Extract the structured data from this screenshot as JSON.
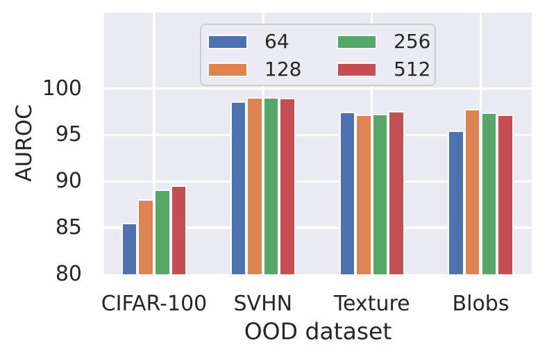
{
  "chart_data": {
    "type": "bar",
    "title": "",
    "xlabel": "OOD dataset",
    "ylabel": "AUROC",
    "categories": [
      "CIFAR-100",
      "SVHN",
      "Texture",
      "Blobs"
    ],
    "series": [
      {
        "name": "64",
        "color": "#4c72b0",
        "values": [
          85.5,
          98.6,
          97.5,
          95.5
        ]
      },
      {
        "name": "128",
        "color": "#dd8452",
        "values": [
          88.1,
          99.1,
          97.2,
          97.8
        ]
      },
      {
        "name": "256",
        "color": "#55a868",
        "values": [
          89.1,
          99.1,
          97.3,
          97.4
        ]
      },
      {
        "name": "512",
        "color": "#c44e52",
        "values": [
          89.6,
          99.0,
          97.6,
          97.2
        ]
      }
    ],
    "yticks": [
      80,
      85,
      90,
      95,
      100
    ],
    "ylim": [
      80,
      108
    ],
    "grid": true,
    "gridline_color": "#ffffff",
    "plot_background": "#eaeaf2",
    "text_color": "#262626",
    "legend_position": "upper center inside",
    "legend_columns": 2
  }
}
